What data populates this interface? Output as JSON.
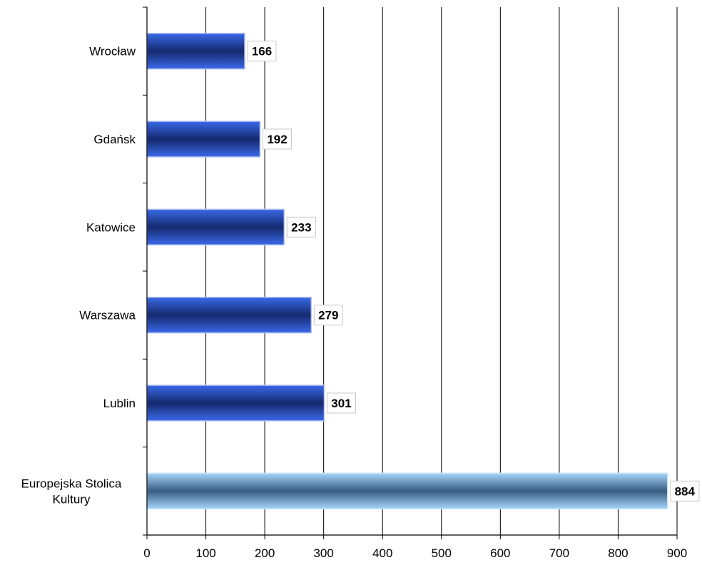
{
  "chart_data": {
    "type": "bar",
    "orientation": "horizontal",
    "categories": [
      "Wrocław",
      "Gdańsk",
      "Katowice",
      "Warszawa",
      "Lublin",
      "Europejska Stolica\nKultury"
    ],
    "values": [
      166,
      192,
      233,
      279,
      301,
      884
    ],
    "data_labels": [
      "166",
      "192",
      "233",
      "279",
      "301",
      "884"
    ],
    "xlim": [
      0,
      900
    ],
    "x_ticks": [
      0,
      100,
      200,
      300,
      400,
      500,
      600,
      700,
      800,
      900
    ],
    "x_tick_labels": [
      "0",
      "100",
      "200",
      "300",
      "400",
      "500",
      "600",
      "700",
      "800",
      "900"
    ],
    "title": "",
    "xlabel": "",
    "ylabel": "",
    "grid": "vertical gridlines",
    "legend": "none",
    "colors": {
      "bar_edge": "#1f3fc0",
      "bar_mid": "#15296e",
      "bar_light": "#3a6ae8",
      "highlight_edge": "#9fd0f5",
      "highlight_mid": "#3a5c82",
      "grid": "#000000",
      "axis": "#808080"
    }
  }
}
